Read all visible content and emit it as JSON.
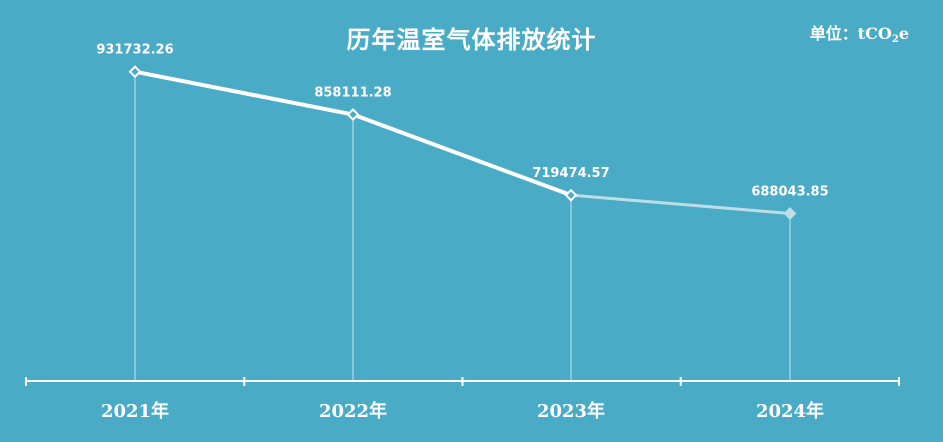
{
  "chart_data": {
    "type": "line",
    "title": "历年温室气体排放统计",
    "unit_prefix": "单位：tCO",
    "unit_sub": "2",
    "unit_suffix": "e",
    "categories": [
      "2021年",
      "2022年",
      "2023年",
      "2024年"
    ],
    "values": [
      931732.26,
      858111.28,
      719474.57,
      688043.85
    ],
    "value_labels": [
      "931732.26",
      "858111.28",
      "719474.57",
      "688043.85"
    ],
    "ylim": [
      400000,
      1000000
    ],
    "grid": false,
    "legend": "none",
    "colors": {
      "background": "#4aabc7",
      "line": "#ffffff",
      "line_faded": "#bfdde6",
      "axis": "#ffffff"
    }
  }
}
